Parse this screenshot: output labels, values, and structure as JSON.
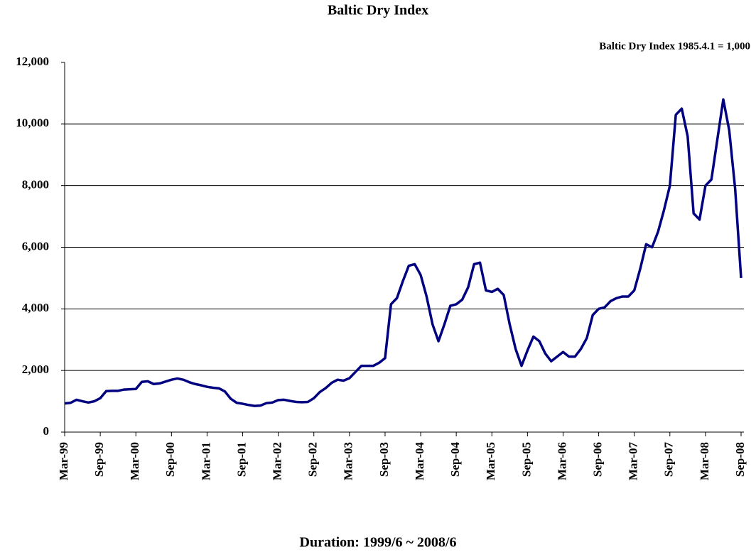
{
  "chart_data": {
    "type": "line",
    "title": "Baltic Dry Index",
    "annotation": "Baltic Dry Index 1985.4.1 = 1,000",
    "x_label": "Duration: 1999/6 ~ 2008/6",
    "categories": [
      "Mar-99",
      null,
      null,
      null,
      null,
      null,
      "Sep-99",
      null,
      null,
      null,
      null,
      null,
      "Mar-00",
      null,
      null,
      null,
      null,
      null,
      "Sep-00",
      null,
      null,
      null,
      null,
      null,
      "Mar-01",
      null,
      null,
      null,
      null,
      null,
      "Sep-01",
      null,
      null,
      null,
      null,
      null,
      "Mar-02",
      null,
      null,
      null,
      null,
      null,
      "Sep-02",
      null,
      null,
      null,
      null,
      null,
      "Mar-03",
      null,
      null,
      null,
      null,
      null,
      "Sep-03",
      null,
      null,
      null,
      null,
      null,
      "Mar-04",
      null,
      null,
      null,
      null,
      null,
      "Sep-04",
      null,
      null,
      null,
      null,
      null,
      "Mar-05",
      null,
      null,
      null,
      null,
      null,
      "Sep-05",
      null,
      null,
      null,
      null,
      null,
      "Mar-06",
      null,
      null,
      null,
      null,
      null,
      "Sep-06",
      null,
      null,
      null,
      null,
      null,
      "Mar-07",
      null,
      null,
      null,
      null,
      null,
      "Sep-07",
      null,
      null,
      null,
      null,
      null,
      "Mar-08",
      null,
      null,
      null,
      null,
      null,
      "Sep-08"
    ],
    "values": [
      930,
      950,
      1050,
      1000,
      960,
      1000,
      1100,
      1330,
      1340,
      1340,
      1380,
      1390,
      1400,
      1630,
      1650,
      1560,
      1580,
      1640,
      1700,
      1740,
      1700,
      1620,
      1560,
      1520,
      1470,
      1440,
      1420,
      1320,
      1080,
      950,
      920,
      880,
      850,
      860,
      940,
      960,
      1040,
      1050,
      1010,
      980,
      970,
      980,
      1100,
      1300,
      1430,
      1600,
      1700,
      1670,
      1750,
      1950,
      2150,
      2150,
      2150,
      2250,
      2400,
      4150,
      4350,
      4900,
      5400,
      5450,
      5100,
      4400,
      3500,
      2950,
      3500,
      4100,
      4150,
      4300,
      4700,
      5450,
      5500,
      4600,
      4550,
      4650,
      4450,
      3500,
      2700,
      2150,
      2650,
      3100,
      2950,
      2550,
      2300,
      2450,
      2600,
      2450,
      2450,
      2700,
      3050,
      3800,
      4000,
      4050,
      4250,
      4350,
      4400,
      4400,
      4600,
      5300,
      6100,
      6000,
      6500,
      7200,
      8000,
      10300,
      10500,
      9600,
      7100,
      6900,
      8000,
      8200,
      9500,
      10800,
      9800,
      7900,
      5000
    ],
    "color": "#000080",
    "ylim": [
      0,
      12000
    ],
    "yticks": [
      0,
      {
        "value": 2000,
        "label": "2,000"
      },
      {
        "value": 4000,
        "label": "4,000"
      },
      {
        "value": 6000,
        "label": "6,000"
      },
      {
        "value": 8000,
        "label": "8,000"
      },
      {
        "value": 10000,
        "label": "10,000"
      },
      {
        "value": 12000,
        "label": "12,000"
      }
    ],
    "grid": true
  }
}
